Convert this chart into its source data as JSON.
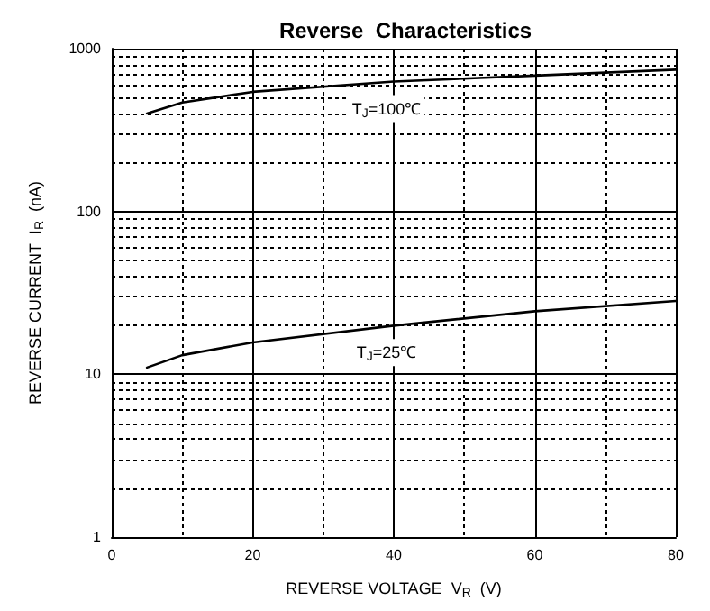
{
  "chart_data": {
    "type": "line",
    "title": "Reverse  Characteristics",
    "xlabel": "REVERSE VOLTAGE  V$_{R}$  (V)",
    "ylabel": "REVERSE CURRENT  I$_{R}$  (nA)",
    "series": [
      {
        "color": "#000000",
        "x": [
          5,
          10,
          20,
          40,
          60,
          80
        ],
        "values": [
          400,
          467,
          543,
          628,
          683,
          742
        ]
      },
      {
        "color": "#000000",
        "x": [
          5,
          10,
          20,
          40,
          60,
          80
        ],
        "values": [
          11,
          13.1,
          15.7,
          19.9,
          24.4,
          28.2
        ]
      }
    ],
    "xlim": [
      0,
      80
    ],
    "xticks": [
      0,
      20,
      40,
      60,
      80
    ],
    "ylim": [
      1,
      1000
    ],
    "yticks": [
      1,
      10,
      100,
      1000
    ],
    "log": "y",
    "grid": true,
    "marker": "none",
    "line_style": "solid",
    "annotations": [
      "T$_{J}$=100℃",
      "T$_{J}$=25℃"
    ]
  }
}
